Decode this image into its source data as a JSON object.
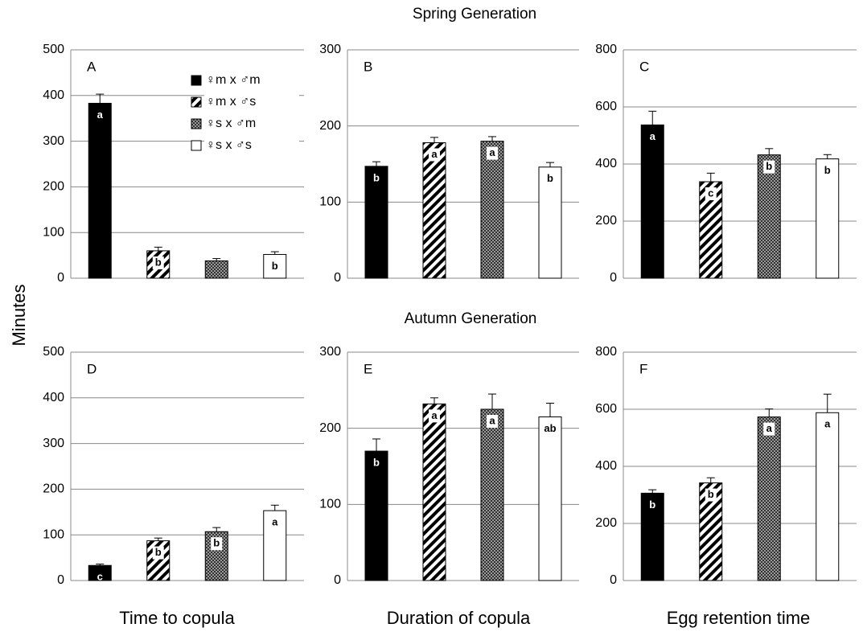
{
  "figure": {
    "row_titles": [
      "Spring Generation",
      "Autumn Generation"
    ],
    "ylabel": "Minutes",
    "column_titles": [
      "Time to copula",
      "Duration of copula",
      "Egg retention time"
    ],
    "groups": [
      {
        "name": "♀m x ♂m",
        "color": "#000000",
        "pattern": "solid"
      },
      {
        "name": "♀m x ♂s",
        "color": "#000000",
        "pattern": "hatch"
      },
      {
        "name": "♀s x ♂m",
        "color": "#555555",
        "pattern": "checker"
      },
      {
        "name": "♀s x ♂s",
        "color": "#ffffff",
        "pattern": "solid"
      }
    ]
  },
  "chart_data": [
    {
      "type": "bar",
      "label": "A",
      "values": [
        383,
        60,
        38,
        52
      ],
      "errors": [
        20,
        8,
        5,
        6
      ],
      "letters": [
        "a",
        "b",
        null,
        "b"
      ],
      "ylim": [
        0,
        500
      ],
      "yticks": [
        0,
        100,
        200,
        300,
        400,
        500
      ],
      "grid": true,
      "legend": "upper right"
    },
    {
      "type": "bar",
      "label": "B",
      "values": [
        147,
        178,
        180,
        146
      ],
      "errors": [
        6,
        7,
        6,
        6
      ],
      "letters": [
        "b",
        "a",
        "a",
        "b"
      ],
      "ylim": [
        0,
        300
      ],
      "yticks": [
        0,
        100,
        200,
        300
      ],
      "grid": true
    },
    {
      "type": "bar",
      "label": "C",
      "values": [
        537,
        338,
        432,
        418
      ],
      "errors": [
        48,
        30,
        22,
        15
      ],
      "letters": [
        "a",
        "c",
        "b",
        "b"
      ],
      "ylim": [
        0,
        800
      ],
      "yticks": [
        0,
        200,
        400,
        600,
        800
      ],
      "grid": true
    },
    {
      "type": "bar",
      "label": "D",
      "values": [
        33,
        87,
        107,
        153
      ],
      "errors": [
        3,
        6,
        9,
        12
      ],
      "letters": [
        "c",
        "b",
        "b",
        "a"
      ],
      "ylim": [
        0,
        500
      ],
      "yticks": [
        0,
        100,
        200,
        300,
        400,
        500
      ],
      "grid": true
    },
    {
      "type": "bar",
      "label": "E",
      "values": [
        170,
        232,
        225,
        215
      ],
      "errors": [
        16,
        8,
        20,
        18
      ],
      "letters": [
        "b",
        "a",
        "a",
        "ab"
      ],
      "ylim": [
        0,
        300
      ],
      "yticks": [
        0,
        100,
        200,
        300
      ],
      "grid": true
    },
    {
      "type": "bar",
      "label": "F",
      "values": [
        306,
        342,
        573,
        588
      ],
      "errors": [
        12,
        18,
        28,
        65
      ],
      "letters": [
        "b",
        "b",
        "a",
        "a"
      ],
      "ylim": [
        0,
        800
      ],
      "yticks": [
        0,
        200,
        400,
        600,
        800
      ],
      "grid": true
    }
  ]
}
